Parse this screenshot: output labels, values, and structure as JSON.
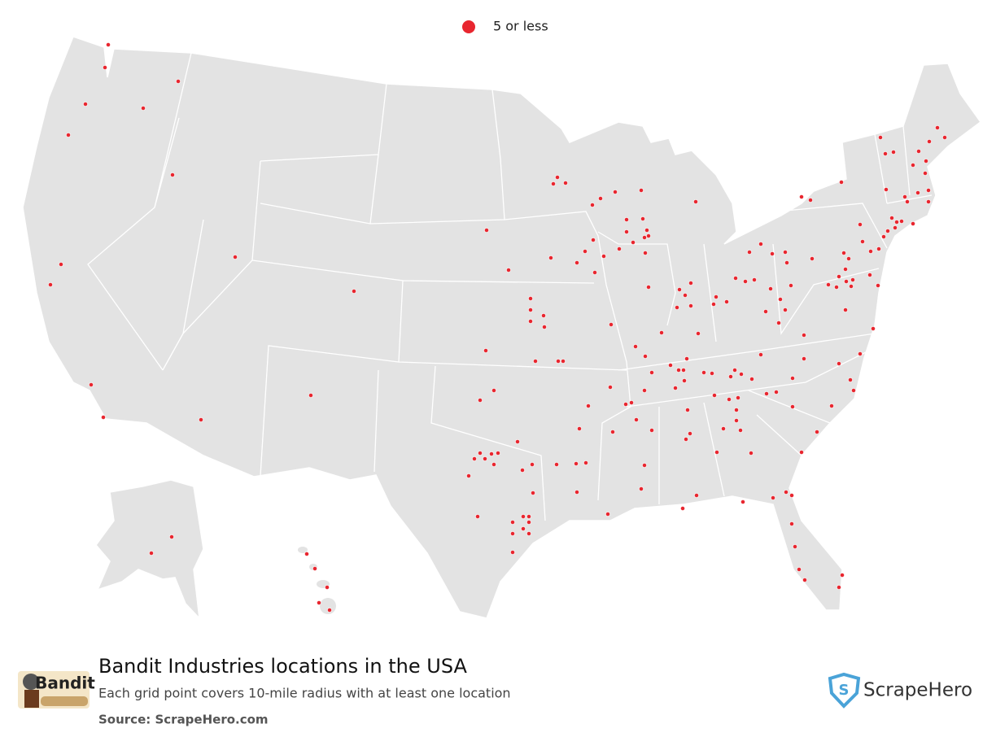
{
  "legend": {
    "label": "5 or less"
  },
  "title": "Bandit Industries locations in the USA",
  "subtitle": "Each grid point covers 10-mile radius with at least one location",
  "source": "Source: ScrapeHero.com",
  "brand_logo": "Bandit",
  "watermark": "ScrapeHero"
}
